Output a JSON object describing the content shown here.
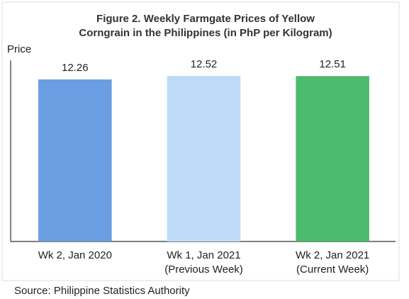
{
  "chart_data": {
    "type": "bar",
    "title": [
      "Figure 2. Weekly Farmgate Prices of Yellow",
      "Corngrain in the Philippines (in PhP per Kilogram)"
    ],
    "y_label": "Price",
    "categories": [
      [
        "Wk 2, Jan 2020"
      ],
      [
        "Wk 1, Jan 2021",
        "(Previous Week)"
      ],
      [
        "Wk 2, Jan 2021",
        "(Current Week)"
      ]
    ],
    "values": [
      12.26,
      12.52,
      12.51
    ],
    "colors": [
      "#6b9de2",
      "#bddbf6",
      "#4dbb6d"
    ],
    "ylim": [
      0,
      13.7
    ],
    "source": "Source: Philippine Statistics Authority"
  }
}
